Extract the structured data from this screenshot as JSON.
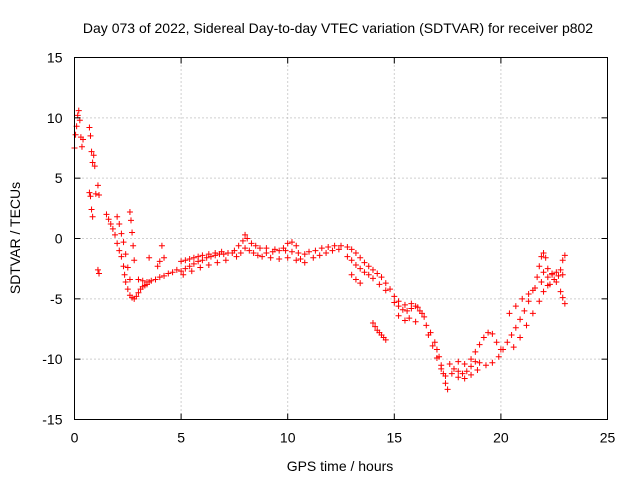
{
  "chart_data": {
    "type": "scatter",
    "title": "Day 073 of 2022, Sidereal Day-to-day VTEC variation (SDTVAR) for receiver p802",
    "xlabel": "GPS time / hours",
    "ylabel": "SDTVAR / TECUs",
    "xlim": [
      0,
      25
    ],
    "ylim": [
      -15,
      15
    ],
    "xticks": [
      0,
      5,
      10,
      15,
      20,
      25
    ],
    "xtick_labels": [
      "0",
      "5",
      "10",
      "15",
      "20",
      "25"
    ],
    "yticks": [
      -15,
      -10,
      -5,
      0,
      5,
      10,
      15
    ],
    "ytick_labels": [
      "-15",
      "-10",
      "-5",
      "0",
      "5",
      "10",
      "15"
    ],
    "grid": true,
    "marker": "+",
    "color": "#ff0000",
    "series": [
      {
        "name": "SDTVAR",
        "points": [
          [
            0.0,
            7.5
          ],
          [
            0.05,
            8.6
          ],
          [
            0.1,
            9.3
          ],
          [
            0.15,
            10.2
          ],
          [
            0.2,
            10.6
          ],
          [
            0.25,
            9.8
          ],
          [
            0.3,
            8.4
          ],
          [
            0.35,
            7.6
          ],
          [
            0.4,
            8.2
          ],
          [
            0.7,
            9.2
          ],
          [
            0.75,
            8.5
          ],
          [
            0.8,
            7.2
          ],
          [
            0.85,
            6.3
          ],
          [
            0.9,
            6.9
          ],
          [
            0.95,
            6.0
          ],
          [
            0.7,
            3.8
          ],
          [
            0.75,
            3.5
          ],
          [
            0.8,
            2.4
          ],
          [
            0.85,
            1.8
          ],
          [
            1.0,
            3.7
          ],
          [
            1.1,
            4.4
          ],
          [
            1.15,
            3.6
          ],
          [
            1.1,
            -2.6
          ],
          [
            1.15,
            -2.9
          ],
          [
            1.5,
            2.0
          ],
          [
            1.6,
            1.6
          ],
          [
            1.7,
            1.2
          ],
          [
            1.8,
            0.8
          ],
          [
            1.9,
            0.3
          ],
          [
            2.0,
            -0.4
          ],
          [
            2.1,
            -1.0
          ],
          [
            2.2,
            -1.5
          ],
          [
            2.0,
            1.8
          ],
          [
            2.1,
            1.2
          ],
          [
            2.2,
            0.4
          ],
          [
            2.3,
            -0.3
          ],
          [
            2.4,
            -1.3
          ],
          [
            2.5,
            -2.4
          ],
          [
            2.6,
            -3.4
          ],
          [
            2.6,
            2.2
          ],
          [
            2.65,
            1.5
          ],
          [
            2.7,
            0.5
          ],
          [
            2.75,
            -0.6
          ],
          [
            2.8,
            -1.8
          ],
          [
            2.3,
            -2.3
          ],
          [
            2.35,
            -3.0
          ],
          [
            2.4,
            -3.6
          ],
          [
            2.5,
            -4.2
          ],
          [
            2.6,
            -4.7
          ],
          [
            2.7,
            -4.9
          ],
          [
            2.8,
            -5.0
          ],
          [
            2.9,
            -4.8
          ],
          [
            3.0,
            -4.5
          ],
          [
            3.1,
            -4.2
          ],
          [
            3.2,
            -4.0
          ],
          [
            3.3,
            -3.9
          ],
          [
            3.4,
            -3.8
          ],
          [
            3.5,
            -3.6
          ],
          [
            3.6,
            -3.5
          ],
          [
            3.0,
            -3.4
          ],
          [
            3.2,
            -3.5
          ],
          [
            3.4,
            -3.6
          ],
          [
            3.5,
            -1.6
          ],
          [
            3.8,
            -3.4
          ],
          [
            4.0,
            -3.2
          ],
          [
            4.2,
            -3.1
          ],
          [
            4.4,
            -2.9
          ],
          [
            4.6,
            -2.8
          ],
          [
            4.8,
            -2.6
          ],
          [
            3.9,
            -2.3
          ],
          [
            4.0,
            -1.9
          ],
          [
            4.1,
            -0.6
          ],
          [
            4.2,
            -1.6
          ],
          [
            5.0,
            -2.7
          ],
          [
            5.2,
            -2.5
          ],
          [
            5.4,
            -2.3
          ],
          [
            5.6,
            -2.1
          ],
          [
            5.8,
            -1.9
          ],
          [
            6.0,
            -1.8
          ],
          [
            6.2,
            -1.6
          ],
          [
            6.4,
            -1.5
          ],
          [
            6.6,
            -1.4
          ],
          [
            6.8,
            -1.3
          ],
          [
            7.0,
            -1.3
          ],
          [
            7.2,
            -1.2
          ],
          [
            7.4,
            -1.2
          ],
          [
            5.0,
            -1.9
          ],
          [
            5.2,
            -1.8
          ],
          [
            5.4,
            -1.7
          ],
          [
            5.6,
            -1.6
          ],
          [
            5.8,
            -1.5
          ],
          [
            6.0,
            -1.4
          ],
          [
            6.3,
            -1.3
          ],
          [
            6.6,
            -1.2
          ],
          [
            6.9,
            -1.1
          ],
          [
            5.1,
            -3.0
          ],
          [
            5.5,
            -2.7
          ],
          [
            5.9,
            -2.4
          ],
          [
            6.3,
            -2.2
          ],
          [
            6.7,
            -2.0
          ],
          [
            7.1,
            -1.8
          ],
          [
            7.5,
            -1.0
          ],
          [
            7.7,
            -0.6
          ],
          [
            7.9,
            -0.2
          ],
          [
            8.0,
            0.3
          ],
          [
            8.1,
            0.0
          ],
          [
            8.3,
            -0.4
          ],
          [
            8.5,
            -0.6
          ],
          [
            8.7,
            -0.8
          ],
          [
            7.6,
            -1.5
          ],
          [
            7.8,
            -1.2
          ],
          [
            8.0,
            -0.8
          ],
          [
            8.2,
            -1.0
          ],
          [
            8.4,
            -1.2
          ],
          [
            8.6,
            -1.4
          ],
          [
            8.8,
            -1.5
          ],
          [
            9.0,
            -1.2
          ],
          [
            9.3,
            -1.1
          ],
          [
            9.6,
            -1.0
          ],
          [
            9.9,
            -1.0
          ],
          [
            10.2,
            -1.1
          ],
          [
            10.5,
            -1.2
          ],
          [
            10.8,
            -1.3
          ],
          [
            9.0,
            -0.8
          ],
          [
            9.4,
            -0.9
          ],
          [
            9.8,
            -0.8
          ],
          [
            10.0,
            -0.4
          ],
          [
            10.2,
            -0.3
          ],
          [
            10.4,
            -0.6
          ],
          [
            9.2,
            -1.6
          ],
          [
            9.6,
            -1.7
          ],
          [
            10.0,
            -1.6
          ],
          [
            10.4,
            -1.8
          ],
          [
            10.8,
            -2.0
          ],
          [
            10.6,
            -1.7
          ],
          [
            11.0,
            -1.1
          ],
          [
            11.3,
            -1.0
          ],
          [
            11.6,
            -0.8
          ],
          [
            11.9,
            -0.7
          ],
          [
            12.2,
            -0.6
          ],
          [
            12.5,
            -0.6
          ],
          [
            12.8,
            -0.7
          ],
          [
            11.2,
            -1.6
          ],
          [
            11.5,
            -1.4
          ],
          [
            11.8,
            -1.2
          ],
          [
            12.1,
            -1.0
          ],
          [
            12.4,
            -0.9
          ],
          [
            13.0,
            -0.9
          ],
          [
            13.2,
            -1.2
          ],
          [
            13.4,
            -1.6
          ],
          [
            13.6,
            -2.0
          ],
          [
            13.8,
            -2.3
          ],
          [
            14.0,
            -2.6
          ],
          [
            14.2,
            -2.9
          ],
          [
            14.4,
            -3.2
          ],
          [
            14.6,
            -3.7
          ],
          [
            14.8,
            -4.2
          ],
          [
            12.8,
            -1.5
          ],
          [
            13.0,
            -1.8
          ],
          [
            13.2,
            -2.2
          ],
          [
            13.4,
            -2.5
          ],
          [
            13.6,
            -2.8
          ],
          [
            13.8,
            -3.0
          ],
          [
            14.0,
            -3.3
          ],
          [
            14.3,
            -3.8
          ],
          [
            14.6,
            -4.3
          ],
          [
            13.0,
            -3.0
          ],
          [
            13.2,
            -3.4
          ],
          [
            13.4,
            -3.7
          ],
          [
            14.0,
            -7.0
          ],
          [
            14.1,
            -7.3
          ],
          [
            14.2,
            -7.6
          ],
          [
            14.3,
            -7.8
          ],
          [
            14.4,
            -8.0
          ],
          [
            14.5,
            -8.2
          ],
          [
            14.6,
            -8.4
          ],
          [
            15.0,
            -5.3
          ],
          [
            15.2,
            -5.6
          ],
          [
            15.4,
            -5.9
          ],
          [
            15.6,
            -6.0
          ],
          [
            15.8,
            -5.8
          ],
          [
            16.0,
            -5.6
          ],
          [
            16.2,
            -6.0
          ],
          [
            16.4,
            -6.5
          ],
          [
            15.0,
            -4.8
          ],
          [
            15.2,
            -5.2
          ],
          [
            15.5,
            -5.5
          ],
          [
            15.8,
            -5.4
          ],
          [
            16.1,
            -5.7
          ],
          [
            16.3,
            -6.2
          ],
          [
            15.2,
            -6.4
          ],
          [
            15.5,
            -6.8
          ],
          [
            15.7,
            -6.6
          ],
          [
            16.0,
            -6.9
          ],
          [
            16.5,
            -7.2
          ],
          [
            16.7,
            -7.8
          ],
          [
            16.9,
            -8.6
          ],
          [
            17.0,
            -9.2
          ],
          [
            17.1,
            -9.8
          ],
          [
            17.2,
            -10.5
          ],
          [
            17.3,
            -11.2
          ],
          [
            17.4,
            -12.0
          ],
          [
            17.5,
            -12.5
          ],
          [
            16.6,
            -8.0
          ],
          [
            16.8,
            -8.9
          ],
          [
            17.0,
            -9.9
          ],
          [
            17.2,
            -10.8
          ],
          [
            17.4,
            -11.4
          ],
          [
            17.6,
            -10.4
          ],
          [
            17.8,
            -10.8
          ],
          [
            18.0,
            -11.0
          ],
          [
            18.2,
            -11.2
          ],
          [
            18.4,
            -11.0
          ],
          [
            18.6,
            -10.6
          ],
          [
            18.8,
            -10.2
          ],
          [
            17.7,
            -11.2
          ],
          [
            18.0,
            -11.5
          ],
          [
            18.3,
            -11.6
          ],
          [
            18.6,
            -11.3
          ],
          [
            18.9,
            -10.9
          ],
          [
            18.0,
            -10.2
          ],
          [
            18.3,
            -10.4
          ],
          [
            18.6,
            -10.0
          ],
          [
            18.8,
            -9.4
          ],
          [
            19.0,
            -8.8
          ],
          [
            19.2,
            -8.2
          ],
          [
            19.4,
            -7.8
          ],
          [
            19.6,
            -7.9
          ],
          [
            19.8,
            -8.6
          ],
          [
            20.0,
            -9.2
          ],
          [
            19.0,
            -10.3
          ],
          [
            19.3,
            -10.5
          ],
          [
            19.6,
            -10.3
          ],
          [
            19.9,
            -9.8
          ],
          [
            20.1,
            -9.2
          ],
          [
            20.3,
            -8.6
          ],
          [
            20.5,
            -8.0
          ],
          [
            20.7,
            -7.4
          ],
          [
            20.9,
            -6.7
          ],
          [
            21.1,
            -6.0
          ],
          [
            21.3,
            -5.2
          ],
          [
            21.5,
            -4.3
          ],
          [
            21.7,
            -3.2
          ],
          [
            21.8,
            -2.3
          ],
          [
            21.9,
            -1.5
          ],
          [
            22.0,
            -1.2
          ],
          [
            22.1,
            -1.6
          ],
          [
            20.6,
            -9.0
          ],
          [
            20.9,
            -8.2
          ],
          [
            21.2,
            -7.2
          ],
          [
            21.5,
            -6.2
          ],
          [
            21.8,
            -5.2
          ],
          [
            22.0,
            -4.4
          ],
          [
            22.2,
            -3.9
          ],
          [
            20.4,
            -6.2
          ],
          [
            20.7,
            -5.6
          ],
          [
            21.0,
            -5.0
          ],
          [
            21.3,
            -4.6
          ],
          [
            21.6,
            -4.1
          ],
          [
            21.9,
            -3.6
          ],
          [
            22.2,
            -2.5
          ],
          [
            22.4,
            -2.9
          ],
          [
            22.6,
            -2.8
          ],
          [
            22.8,
            -2.6
          ],
          [
            22.9,
            -1.8
          ],
          [
            23.0,
            -1.4
          ],
          [
            22.3,
            -3.8
          ],
          [
            22.5,
            -3.4
          ],
          [
            22.7,
            -3.1
          ],
          [
            22.9,
            -3.0
          ],
          [
            22.0,
            -2.8
          ],
          [
            22.2,
            -3.2
          ],
          [
            22.4,
            -3.0
          ],
          [
            22.6,
            -3.6
          ],
          [
            22.8,
            -4.4
          ],
          [
            22.9,
            -4.9
          ],
          [
            23.0,
            -5.4
          ]
        ]
      }
    ]
  }
}
